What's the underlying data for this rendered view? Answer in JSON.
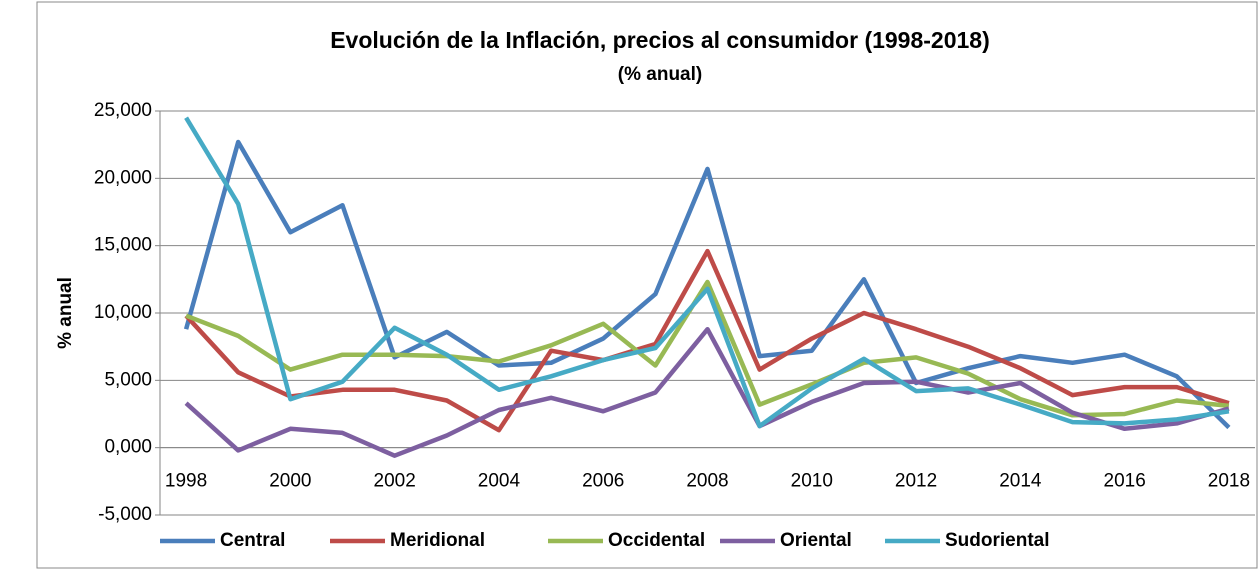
{
  "chart_data": {
    "type": "line",
    "title": "Evolución de la Inflación, precios al consumidor (1998-2018)",
    "subtitle": "(% anual)",
    "y_label": "% anual",
    "categories": [
      "1998",
      null,
      "2000",
      null,
      "2002",
      null,
      "2004",
      null,
      "2006",
      null,
      "2008",
      null,
      "2010",
      null,
      "2012",
      null,
      "2014",
      null,
      "2016",
      null,
      "2018"
    ],
    "series": [
      {
        "name": "Central",
        "color": "#4a7ebb",
        "values": [
          8.8,
          22.7,
          16.0,
          18.0,
          6.7,
          8.6,
          6.1,
          6.3,
          8.1,
          11.4,
          20.7,
          6.8,
          7.2,
          12.5,
          4.8,
          5.9,
          6.8,
          6.3,
          6.9,
          5.3,
          1.5
        ]
      },
      {
        "name": "Meridional",
        "color": "#be4b48",
        "values": [
          9.8,
          5.6,
          3.8,
          4.3,
          4.3,
          3.5,
          1.3,
          7.2,
          6.5,
          7.7,
          14.6,
          5.8,
          8.1,
          10.0,
          8.8,
          7.5,
          5.9,
          3.9,
          4.5,
          4.5,
          3.3
        ]
      },
      {
        "name": "Occidental",
        "color": "#98b954",
        "values": [
          9.8,
          8.3,
          5.8,
          6.9,
          6.9,
          6.8,
          6.4,
          7.6,
          9.2,
          6.1,
          12.3,
          3.2,
          4.7,
          6.3,
          6.7,
          5.5,
          3.6,
          2.4,
          2.5,
          3.5,
          3.1
        ]
      },
      {
        "name": "Oriental",
        "color": "#7d5fa0",
        "values": [
          3.3,
          -0.2,
          1.4,
          1.1,
          -0.6,
          0.9,
          2.8,
          3.7,
          2.7,
          4.1,
          8.8,
          1.6,
          3.4,
          4.8,
          4.9,
          4.1,
          4.8,
          2.6,
          1.4,
          1.8,
          2.9
        ]
      },
      {
        "name": "Sudoriental",
        "color": "#46aac5",
        "values": [
          24.5,
          18.1,
          3.6,
          4.9,
          8.9,
          6.9,
          4.3,
          5.3,
          6.5,
          7.4,
          11.8,
          1.6,
          4.4,
          6.6,
          4.2,
          4.4,
          3.2,
          1.9,
          1.8,
          2.1,
          2.7
        ]
      }
    ],
    "ylim": [
      -5,
      25
    ],
    "yticks": [
      {
        "value": -5,
        "label": "-5,000"
      },
      {
        "value": 0,
        "label": "0,000"
      },
      {
        "value": 5,
        "label": "5,000"
      },
      {
        "value": 10,
        "label": "10,000"
      },
      {
        "value": 15,
        "label": "15,000"
      },
      {
        "value": 20,
        "label": "20,000"
      },
      {
        "value": 25,
        "label": "25,000"
      }
    ],
    "grid": true,
    "legend": "bottom"
  }
}
